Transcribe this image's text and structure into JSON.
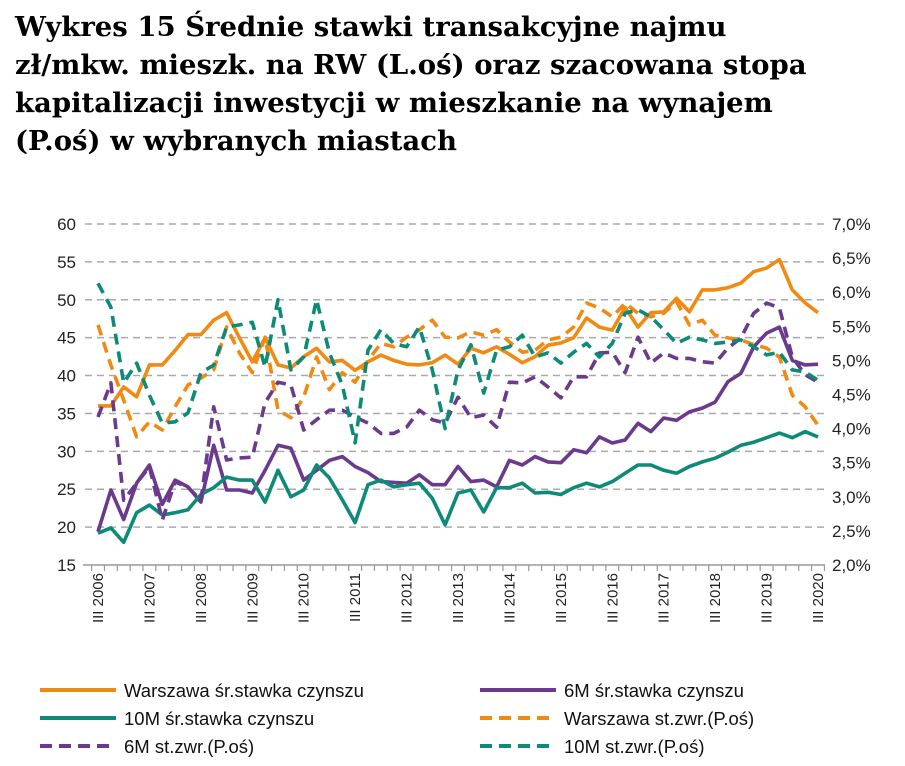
{
  "chart_data": {
    "type": "line",
    "title_lines": [
      "Wykres 15 Średnie stawki transakcyjne najmu",
      "zł/mkw. mieszk. na RW (L.oś) oraz szacowana stopa",
      "kapitalizacji inwestycji w mieszkanie na wynajem",
      "(P.oś) w wybranych miastach"
    ],
    "y_left": {
      "min": 15,
      "max": 60,
      "ticks": [
        "15",
        "20",
        "25",
        "30",
        "35",
        "40",
        "45",
        "50",
        "55",
        "60"
      ]
    },
    "y_right": {
      "min": 2.0,
      "max": 7.0,
      "ticks": [
        "2,0%",
        "2,5%",
        "3,0%",
        "3,5%",
        "4,0%",
        "4,5%",
        "5,0%",
        "5,5%",
        "6,0%",
        "6,5%",
        "7,0%"
      ]
    },
    "x_tick_labels": [
      "III 2006",
      "III 2007",
      "III 2008",
      "III 2009",
      "III 2010",
      "III 2011",
      "III 2012",
      "III 2013",
      "III 2014",
      "III 2015",
      "III 2016",
      "III 2017",
      "III 2018",
      "III 2019",
      "III 2020"
    ],
    "x_quarters_count": 57,
    "grid": "horizontal dashed",
    "legend_placement": "bottom",
    "series": [
      {
        "name": "Warszawa śr.stawka czynszu",
        "axis": "left",
        "style": "solid",
        "color": "#F08A12",
        "values": [
          36,
          36,
          38.5,
          37.2,
          41.4,
          41.4,
          43.3,
          45.4,
          45.4,
          47.3,
          48.3,
          45,
          41.8,
          45,
          41.4,
          41,
          42.5,
          43.6,
          41.8,
          42,
          40.7,
          41.8,
          42.7,
          42,
          41.5,
          41.4,
          41.7,
          42.7,
          41.5,
          43.6,
          43,
          43.8,
          42.8,
          41.7,
          42.5,
          44,
          44.3,
          45,
          47.6,
          46.4,
          46,
          49,
          46.4,
          48.3,
          48.4,
          50.2,
          48.4,
          51.3,
          51.3,
          51.6,
          52.2,
          53.7,
          54.2,
          55.3,
          51.3,
          49.6,
          48.3
        ]
      },
      {
        "name": "6M śr.stawka czynszu",
        "axis": "left",
        "style": "solid",
        "color": "#6B3A8C",
        "values": [
          19.4,
          24.9,
          21,
          25.8,
          28.2,
          23,
          26.2,
          25.3,
          23.3,
          30.8,
          24.9,
          24.9,
          24.5,
          27.5,
          30.8,
          30.4,
          26.2,
          27.5,
          28.8,
          29.3,
          28,
          27.2,
          26,
          25.9,
          25.8,
          26.9,
          25.6,
          25.6,
          28,
          26,
          26.2,
          25.3,
          28.8,
          28.2,
          29.3,
          28.6,
          28.5,
          30.2,
          29.8,
          31.9,
          31.1,
          31.5,
          33.7,
          32.6,
          34.4,
          34.1,
          35.2,
          35.7,
          36.5,
          39.2,
          40.3,
          43.8,
          45.6,
          46.4,
          42,
          41.4,
          41.5
        ]
      },
      {
        "name": "10M śr.stawka czynszu",
        "axis": "left",
        "style": "solid",
        "color": "#0E8A78",
        "values": [
          19.2,
          19.9,
          18,
          21.9,
          22.9,
          21.6,
          21.9,
          22.3,
          24.3,
          25.2,
          26.6,
          26.2,
          26.2,
          23.3,
          27.5,
          24,
          24.9,
          28.2,
          26.5,
          23.6,
          20.6,
          25.6,
          26.2,
          25.3,
          25.6,
          25.8,
          23.8,
          20.3,
          24.5,
          24.9,
          22,
          25.2,
          25.2,
          25.8,
          24.5,
          24.6,
          24.3,
          25.2,
          25.8,
          25.3,
          26,
          27.1,
          28.2,
          28.2,
          27.5,
          27.1,
          28,
          28.6,
          29.1,
          29.9,
          30.8,
          31.2,
          31.8,
          32.4,
          31.8,
          32.6,
          31.9
        ]
      },
      {
        "name": "Warszawa st.zwr.(P.oś)",
        "axis": "right",
        "style": "dashed",
        "color": "#F08A12",
        "values": [
          5.52,
          4.93,
          4.42,
          3.88,
          4.1,
          3.98,
          4.32,
          4.64,
          4.74,
          4.86,
          5.49,
          5.11,
          4.82,
          5.34,
          4.27,
          4.16,
          4.46,
          5.05,
          4.57,
          4.82,
          4.68,
          5.0,
          5.25,
          5.2,
          5.34,
          5.45,
          5.59,
          5.34,
          5.33,
          5.42,
          5.37,
          5.45,
          5.27,
          5.12,
          5.15,
          5.3,
          5.34,
          5.49,
          5.84,
          5.77,
          5.64,
          5.84,
          5.69,
          5.64,
          5.69,
          5.86,
          5.52,
          5.59,
          5.37,
          5.33,
          5.3,
          5.23,
          5.18,
          5.05,
          4.49,
          4.32,
          4.05
        ]
      },
      {
        "name": "6M st.zwr.(P.oś)",
        "axis": "right",
        "style": "dashed",
        "color": "#6B3A8C",
        "values": [
          4.17,
          4.67,
          2.95,
          3.2,
          3.44,
          2.66,
          3.22,
          3.14,
          2.95,
          4.32,
          3.54,
          3.57,
          3.58,
          4.38,
          4.68,
          4.64,
          3.98,
          4.13,
          4.27,
          4.27,
          4.17,
          4.08,
          3.93,
          3.93,
          4.02,
          4.27,
          4.13,
          4.08,
          4.46,
          4.16,
          4.2,
          4.02,
          4.68,
          4.67,
          4.76,
          4.61,
          4.45,
          4.76,
          4.76,
          5.11,
          5.12,
          4.82,
          5.34,
          4.96,
          5.11,
          5.03,
          5.03,
          4.98,
          4.96,
          5.18,
          5.33,
          5.69,
          5.84,
          5.77,
          5.05,
          4.79,
          4.68
        ]
      },
      {
        "name": "10M st.zwr.(P.oś)",
        "axis": "right",
        "style": "dashed",
        "color": "#0E8A78",
        "values": [
          6.13,
          5.78,
          4.67,
          4.96,
          4.49,
          4.08,
          4.1,
          4.23,
          4.82,
          4.93,
          5.49,
          5.52,
          5.56,
          4.9,
          5.89,
          4.86,
          5.05,
          5.89,
          5.11,
          4.64,
          3.79,
          5.15,
          5.45,
          5.25,
          5.2,
          5.49,
          4.86,
          4.0,
          4.86,
          5.23,
          4.52,
          5.15,
          5.2,
          5.37,
          5.05,
          5.11,
          4.96,
          5.12,
          5.25,
          5.05,
          5.25,
          5.69,
          5.74,
          5.64,
          5.45,
          5.25,
          5.34,
          5.3,
          5.25,
          5.27,
          5.3,
          5.2,
          5.08,
          5.12,
          4.86,
          4.83,
          4.71
        ]
      }
    ],
    "legend_order": [
      0,
      1,
      2,
      3,
      4,
      5
    ]
  }
}
